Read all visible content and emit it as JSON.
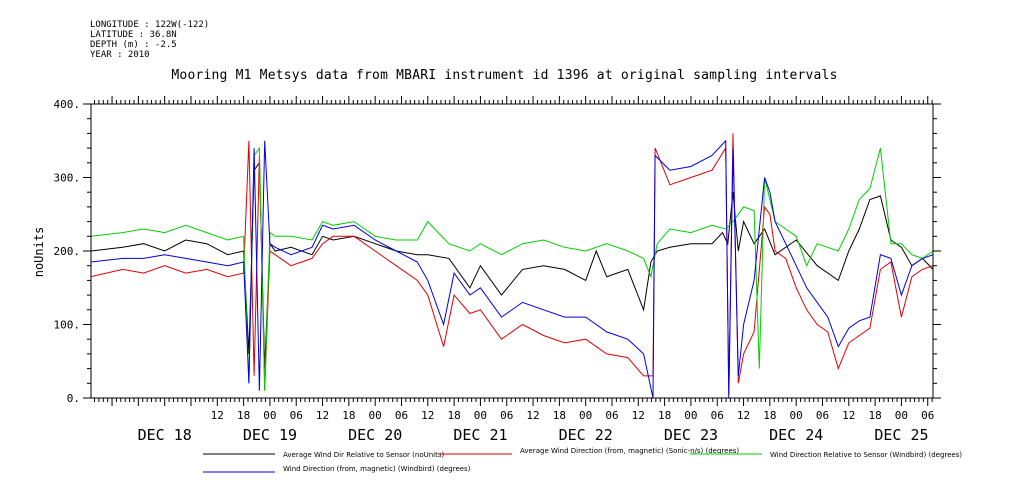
{
  "metadata": {
    "longitude": "LONGITUDE : 122W(-122)",
    "latitude": "LATITUDE : 36.8N",
    "depth": "DEPTH (m) : -2.5",
    "year": "YEAR : 2010"
  },
  "chart_data": {
    "type": "line",
    "title": "Mooring M1 Metsys data from MBARI instrument id 1396 at original sampling intervals",
    "ylabel": "noUnits",
    "xlabel": "",
    "ylim": [
      0,
      400
    ],
    "yticks": [
      0,
      100,
      200,
      300,
      400
    ],
    "ytick_labels": [
      "0.",
      "100.",
      "200.",
      "300.",
      "400."
    ],
    "xlim": [
      -0.7,
      7.3
    ],
    "x_hour_ticks": [
      {
        "day": 0,
        "hour": 12,
        "label": "12"
      },
      {
        "day": 0,
        "hour": 18,
        "label": "18"
      },
      {
        "day": 1,
        "hour": 0,
        "label": "00"
      },
      {
        "day": 1,
        "hour": 6,
        "label": "06"
      },
      {
        "day": 1,
        "hour": 12,
        "label": "12"
      },
      {
        "day": 1,
        "hour": 18,
        "label": "18"
      },
      {
        "day": 2,
        "hour": 0,
        "label": "00"
      },
      {
        "day": 2,
        "hour": 6,
        "label": "06"
      },
      {
        "day": 2,
        "hour": 12,
        "label": "12"
      },
      {
        "day": 2,
        "hour": 18,
        "label": "18"
      },
      {
        "day": 3,
        "hour": 0,
        "label": "00"
      },
      {
        "day": 3,
        "hour": 6,
        "label": "06"
      },
      {
        "day": 3,
        "hour": 12,
        "label": "12"
      },
      {
        "day": 3,
        "hour": 18,
        "label": "18"
      },
      {
        "day": 4,
        "hour": 0,
        "label": "00"
      },
      {
        "day": 4,
        "hour": 6,
        "label": "06"
      },
      {
        "day": 4,
        "hour": 12,
        "label": "12"
      },
      {
        "day": 4,
        "hour": 18,
        "label": "18"
      },
      {
        "day": 5,
        "hour": 0,
        "label": "00"
      },
      {
        "day": 5,
        "hour": 6,
        "label": "06"
      },
      {
        "day": 5,
        "hour": 12,
        "label": "12"
      },
      {
        "day": 5,
        "hour": 18,
        "label": "18"
      },
      {
        "day": 6,
        "hour": 0,
        "label": "00"
      },
      {
        "day": 6,
        "hour": 6,
        "label": "06"
      },
      {
        "day": 6,
        "hour": 12,
        "label": "12"
      },
      {
        "day": 6,
        "hour": 18,
        "label": "18"
      },
      {
        "day": 7,
        "hour": 0,
        "label": "00"
      },
      {
        "day": 7,
        "hour": 6,
        "label": "06"
      }
    ],
    "x_day_labels": [
      {
        "day": 0,
        "label": "DEC 18"
      },
      {
        "day": 1,
        "label": "DEC 19"
      },
      {
        "day": 2,
        "label": "DEC 20"
      },
      {
        "day": 3,
        "label": "DEC 21"
      },
      {
        "day": 4,
        "label": "DEC 22"
      },
      {
        "day": 5,
        "label": "DEC 23"
      },
      {
        "day": 6,
        "label": "DEC 24"
      },
      {
        "day": 7,
        "label": "DEC 25"
      }
    ],
    "legend_placement": "bottom",
    "grid": false,
    "series": [
      {
        "name": "Average Wind Dir Relative to Sensor (noUnits)",
        "color": "#000000",
        "x": [
          -0.7,
          -0.4,
          -0.2,
          0,
          0.2,
          0.4,
          0.6,
          0.75,
          0.8,
          0.85,
          0.9,
          0.95,
          1.0,
          1.05,
          1.2,
          1.4,
          1.5,
          1.6,
          1.8,
          2.0,
          2.2,
          2.4,
          2.5,
          2.7,
          2.9,
          3.0,
          3.2,
          3.4,
          3.6,
          3.8,
          4.0,
          4.1,
          4.2,
          4.4,
          4.55,
          4.62,
          4.68,
          4.8,
          5.0,
          5.2,
          5.3,
          5.35,
          5.4,
          5.45,
          5.5,
          5.6,
          5.7,
          5.8,
          6.0,
          6.2,
          6.4,
          6.5,
          6.6,
          6.7,
          6.8,
          6.9,
          7.0,
          7.1,
          7.2,
          7.3
        ],
        "y": [
          200,
          205,
          210,
          200,
          215,
          210,
          195,
          200,
          60,
          310,
          320,
          40,
          210,
          200,
          205,
          195,
          220,
          215,
          220,
          210,
          200,
          195,
          195,
          190,
          150,
          180,
          140,
          175,
          180,
          175,
          160,
          200,
          165,
          175,
          120,
          185,
          200,
          205,
          210,
          210,
          225,
          210,
          280,
          200,
          240,
          210,
          230,
          195,
          215,
          180,
          160,
          200,
          230,
          270,
          275,
          215,
          205,
          180,
          190,
          175
        ]
      },
      {
        "name": "Average Wind Direction (from, magnetic) (Sonic-n/s) (degrees)",
        "color": "#e00000",
        "x": [
          -0.7,
          -0.4,
          -0.2,
          0,
          0.2,
          0.4,
          0.6,
          0.75,
          0.8,
          0.85,
          0.9,
          0.95,
          1.0,
          1.05,
          1.2,
          1.4,
          1.5,
          1.6,
          1.8,
          2.0,
          2.2,
          2.4,
          2.5,
          2.65,
          2.75,
          2.9,
          3.0,
          3.2,
          3.4,
          3.6,
          3.8,
          4.0,
          4.2,
          4.4,
          4.55,
          4.64,
          4.66,
          4.8,
          5.0,
          5.2,
          5.33,
          5.36,
          5.4,
          5.45,
          5.5,
          5.6,
          5.7,
          5.75,
          5.8,
          5.9,
          6.0,
          6.1,
          6.2,
          6.3,
          6.4,
          6.5,
          6.6,
          6.7,
          6.8,
          6.9,
          7.0,
          7.1,
          7.2,
          7.3
        ],
        "y": [
          165,
          175,
          170,
          180,
          170,
          175,
          165,
          170,
          350,
          30,
          330,
          10,
          200,
          195,
          180,
          190,
          210,
          220,
          220,
          200,
          180,
          160,
          140,
          70,
          140,
          115,
          120,
          80,
          100,
          85,
          75,
          80,
          60,
          55,
          30,
          30,
          340,
          290,
          300,
          310,
          340,
          5,
          360,
          20,
          60,
          90,
          260,
          250,
          200,
          190,
          150,
          120,
          100,
          90,
          40,
          75,
          85,
          95,
          175,
          185,
          110,
          165,
          175,
          180
        ]
      },
      {
        "name": "Wind Direction Relative to Sensor (Windbird) (degrees)",
        "color": "#00d000",
        "x": [
          -0.7,
          -0.4,
          -0.2,
          0,
          0.2,
          0.4,
          0.6,
          0.75,
          0.8,
          0.85,
          0.9,
          0.95,
          1.0,
          1.05,
          1.2,
          1.4,
          1.5,
          1.6,
          1.8,
          2.0,
          2.2,
          2.4,
          2.5,
          2.7,
          2.9,
          3.0,
          3.2,
          3.4,
          3.6,
          3.8,
          4.0,
          4.2,
          4.4,
          4.55,
          4.62,
          4.68,
          4.8,
          5.0,
          5.2,
          5.33,
          5.4,
          5.5,
          5.6,
          5.65,
          5.7,
          5.8,
          6.0,
          6.1,
          6.2,
          6.4,
          6.5,
          6.6,
          6.7,
          6.8,
          6.9,
          7.0,
          7.1,
          7.2,
          7.3
        ],
        "y": [
          220,
          225,
          230,
          225,
          235,
          225,
          215,
          220,
          20,
          330,
          340,
          10,
          225,
          220,
          220,
          215,
          240,
          235,
          240,
          220,
          215,
          215,
          240,
          210,
          200,
          210,
          195,
          210,
          215,
          205,
          200,
          210,
          200,
          190,
          165,
          210,
          230,
          225,
          235,
          230,
          240,
          260,
          255,
          40,
          300,
          240,
          220,
          180,
          210,
          200,
          230,
          270,
          285,
          340,
          210,
          210,
          195,
          190,
          200
        ]
      },
      {
        "name": "Wind Direction (from, magnetic) (Windbird) (degrees)",
        "color": "#0000e0",
        "x": [
          -0.7,
          -0.4,
          -0.2,
          0,
          0.2,
          0.4,
          0.6,
          0.75,
          0.8,
          0.85,
          0.9,
          0.95,
          1.0,
          1.05,
          1.2,
          1.4,
          1.5,
          1.6,
          1.8,
          2.0,
          2.2,
          2.4,
          2.5,
          2.65,
          2.75,
          2.9,
          3.0,
          3.2,
          3.4,
          3.6,
          3.8,
          4.0,
          4.2,
          4.4,
          4.55,
          4.64,
          4.66,
          4.8,
          5.0,
          5.2,
          5.33,
          5.36,
          5.4,
          5.45,
          5.5,
          5.6,
          5.7,
          5.75,
          5.8,
          5.9,
          6.0,
          6.1,
          6.2,
          6.3,
          6.4,
          6.5,
          6.6,
          6.7,
          6.8,
          6.9,
          7.0,
          7.1,
          7.2,
          7.3
        ],
        "y": [
          185,
          190,
          190,
          195,
          190,
          185,
          180,
          185,
          20,
          340,
          10,
          350,
          210,
          205,
          195,
          205,
          235,
          230,
          235,
          215,
          200,
          185,
          160,
          100,
          170,
          140,
          150,
          110,
          130,
          120,
          110,
          110,
          90,
          80,
          60,
          0,
          330,
          310,
          315,
          330,
          350,
          0,
          340,
          30,
          100,
          160,
          300,
          280,
          240,
          210,
          180,
          150,
          130,
          110,
          70,
          95,
          105,
          110,
          195,
          190,
          140,
          180,
          190,
          195
        ]
      }
    ]
  }
}
